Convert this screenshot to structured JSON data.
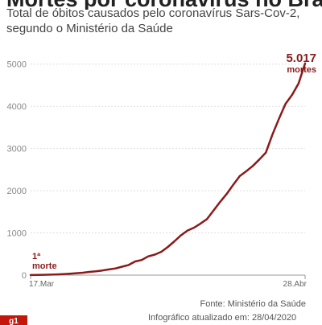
{
  "title": "Mortes por coronavírus no Brasil",
  "subtitle_lines": [
    "Total de óbitos causados pelo coronavírus Sars-Cov-2,",
    "segundo o Ministério da Saúde"
  ],
  "source": "Fonte: Ministério da Saúde",
  "updated": "Infográfico atualizado em: 28/04/2020",
  "logo": "g1",
  "colors": {
    "line": "#8b1a1a",
    "grid": "#dddddd",
    "axis": "#999999",
    "accent": "#c4170c"
  },
  "chart_data": {
    "type": "line",
    "x_start_label": "17.Mar",
    "x_end_label": "28.Abr",
    "yticks": [
      0,
      1000,
      2000,
      3000,
      4000,
      5000
    ],
    "ytick_labels": [
      "0",
      "1000",
      "2000",
      "3000",
      "4000",
      "5000"
    ],
    "ylim": [
      0,
      5300
    ],
    "grid": true,
    "annotations": {
      "first": {
        "line1": "1ª",
        "line2": "morte"
      },
      "last": {
        "value": "5.017",
        "unit": "mortes"
      }
    },
    "values": [
      1,
      4,
      7,
      11,
      18,
      25,
      34,
      46,
      57,
      77,
      92,
      111,
      136,
      159,
      201,
      240,
      324,
      359,
      445,
      486,
      553,
      667,
      800,
      941,
      1056,
      1124,
      1223,
      1328,
      1532,
      1736,
      1924,
      2141,
      2347,
      2462,
      2587,
      2741,
      2906,
      3331,
      3704,
      4057,
      4271,
      4543,
      5017
    ]
  }
}
